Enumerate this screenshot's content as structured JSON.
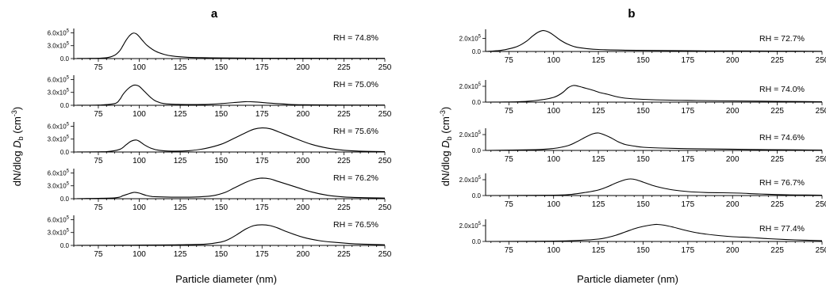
{
  "figure": {
    "panel_letters": [
      "a",
      "b"
    ],
    "x_axis_label": "Particle diameter (nm)",
    "y_axis_label": {
      "main": "dN/dlog ",
      "symbol": "D",
      "subscript": "b",
      "unit_open": "  (cm",
      "unit_exp": "-3",
      "unit_close": ")"
    }
  },
  "chart_data": [
    {
      "panel": "a",
      "row": 1,
      "type": "line",
      "annotation": "RH = 74.8%",
      "x_range": [
        60,
        250
      ],
      "ylim": [
        0,
        700000
      ],
      "xticks": [
        75,
        100,
        125,
        150,
        175,
        200,
        225,
        250
      ],
      "yticks": [
        0,
        300000,
        600000
      ],
      "ytick_labels": [
        "0.0",
        "3.0x10^5",
        "6.0x10^5"
      ],
      "series": [
        {
          "x": [
            62,
            70,
            80,
            85,
            88,
            90,
            92,
            94,
            96,
            98,
            100,
            102,
            105,
            110,
            115,
            120,
            130,
            150,
            175,
            200,
            225,
            250
          ],
          "y": [
            3000,
            5000,
            20000,
            80000,
            180000,
            300000,
            430000,
            530000,
            590000,
            580000,
            510000,
            420000,
            300000,
            170000,
            100000,
            60000,
            30000,
            15000,
            10000,
            8000,
            6000,
            5000
          ]
        }
      ]
    },
    {
      "panel": "a",
      "row": 2,
      "type": "line",
      "annotation": "RH = 75.0%",
      "x_range": [
        60,
        250
      ],
      "ylim": [
        0,
        700000
      ],
      "xticks": [
        75,
        100,
        125,
        150,
        175,
        200,
        225,
        250
      ],
      "yticks": [
        0,
        300000,
        600000
      ],
      "ytick_labels": [
        "0.0",
        "3.0x10^5",
        "6.0x10^5"
      ],
      "series": [
        {
          "x": [
            62,
            75,
            85,
            88,
            90,
            93,
            96,
            98,
            100,
            103,
            107,
            110,
            115,
            125,
            140,
            150,
            160,
            165,
            170,
            180,
            190,
            200,
            225,
            250
          ],
          "y": [
            2000,
            5000,
            40000,
            130000,
            250000,
            380000,
            460000,
            470000,
            440000,
            330000,
            180000,
            100000,
            40000,
            20000,
            20000,
            40000,
            70000,
            85000,
            80000,
            50000,
            25000,
            12000,
            6000,
            5000
          ]
        }
      ]
    },
    {
      "panel": "a",
      "row": 3,
      "type": "line",
      "annotation": "RH = 75.6%",
      "x_range": [
        60,
        250
      ],
      "ylim": [
        0,
        700000
      ],
      "xticks": [
        75,
        100,
        125,
        150,
        175,
        200,
        225,
        250
      ],
      "yticks": [
        0,
        300000,
        600000
      ],
      "ytick_labels": [
        "0.0",
        "3.0x10^5",
        "6.0x10^5"
      ],
      "series": [
        {
          "x": [
            62,
            80,
            88,
            92,
            95,
            98,
            100,
            103,
            107,
            112,
            120,
            130,
            140,
            150,
            158,
            165,
            170,
            175,
            180,
            185,
            195,
            205,
            215,
            225,
            235,
            250
          ],
          "y": [
            2000,
            10000,
            60000,
            170000,
            250000,
            280000,
            250000,
            170000,
            90000,
            40000,
            20000,
            30000,
            80000,
            180000,
            320000,
            450000,
            530000,
            560000,
            540000,
            470000,
            320000,
            180000,
            90000,
            40000,
            20000,
            10000
          ]
        }
      ]
    },
    {
      "panel": "a",
      "row": 4,
      "type": "line",
      "annotation": "RH = 76.2%",
      "x_range": [
        60,
        250
      ],
      "ylim": [
        0,
        700000
      ],
      "xticks": [
        75,
        100,
        125,
        150,
        175,
        200,
        225,
        250
      ],
      "yticks": [
        0,
        300000,
        600000
      ],
      "ytick_labels": [
        "0.0",
        "3.0x10^5",
        "6.0x10^5"
      ],
      "series": [
        {
          "x": [
            62,
            85,
            90,
            94,
            97,
            100,
            104,
            108,
            115,
            125,
            135,
            145,
            152,
            158,
            165,
            170,
            175,
            180,
            185,
            195,
            205,
            215,
            225,
            235,
            250
          ],
          "y": [
            2000,
            20000,
            70000,
            120000,
            150000,
            130000,
            80000,
            50000,
            40000,
            35000,
            40000,
            70000,
            140000,
            250000,
            380000,
            450000,
            480000,
            460000,
            400000,
            280000,
            160000,
            80000,
            40000,
            25000,
            15000
          ]
        }
      ]
    },
    {
      "panel": "a",
      "row": 5,
      "type": "line",
      "annotation": "RH = 76.5%",
      "x_range": [
        60,
        250
      ],
      "ylim": [
        0,
        700000
      ],
      "xticks": [
        75,
        100,
        125,
        150,
        175,
        200,
        225,
        250
      ],
      "yticks": [
        0,
        300000,
        600000
      ],
      "ytick_labels": [
        "0.0",
        "3.0x10^5",
        "6.0x10^5"
      ],
      "series": [
        {
          "x": [
            62,
            90,
            100,
            120,
            140,
            150,
            155,
            160,
            165,
            170,
            175,
            180,
            185,
            190,
            200,
            210,
            220,
            230,
            240,
            250
          ],
          "y": [
            2000,
            5000,
            8000,
            12000,
            30000,
            80000,
            150000,
            260000,
            380000,
            460000,
            480000,
            460000,
            400000,
            320000,
            190000,
            110000,
            70000,
            40000,
            25000,
            15000
          ]
        }
      ]
    },
    {
      "panel": "b",
      "row": 1,
      "type": "line",
      "annotation": "RH = 72.7%",
      "x_range": [
        62,
        250
      ],
      "ylim": [
        0,
        340000
      ],
      "xticks": [
        75,
        100,
        125,
        150,
        175,
        200,
        225,
        250
      ],
      "yticks": [
        0,
        200000
      ],
      "ytick_labels": [
        "0.0",
        "2.0x10^5"
      ],
      "series": [
        {
          "x": [
            62,
            70,
            75,
            80,
            85,
            88,
            91,
            94,
            97,
            100,
            104,
            108,
            112,
            118,
            125,
            140,
            160,
            180,
            200,
            225,
            250
          ],
          "y": [
            0,
            15000,
            40000,
            80000,
            160000,
            230000,
            290000,
            320000,
            300000,
            250000,
            170000,
            110000,
            70000,
            45000,
            30000,
            20000,
            15000,
            10000,
            8000,
            6000,
            3000
          ]
        }
      ]
    },
    {
      "panel": "b",
      "row": 2,
      "type": "line",
      "annotation": "RH = 74.0%",
      "x_range": [
        62,
        250
      ],
      "ylim": [
        0,
        280000
      ],
      "xticks": [
        75,
        100,
        125,
        150,
        175,
        200,
        225,
        250
      ],
      "yticks": [
        0,
        200000
      ],
      "ytick_labels": [
        "0.0",
        "2.0x10^5"
      ],
      "series": [
        {
          "x": [
            62,
            80,
            90,
            100,
            105,
            108,
            111,
            114,
            118,
            122,
            126,
            130,
            135,
            140,
            150,
            165,
            180,
            200,
            225,
            250
          ],
          "y": [
            0,
            5000,
            20000,
            60000,
            120000,
            180000,
            210000,
            200000,
            175000,
            150000,
            120000,
            100000,
            70000,
            50000,
            35000,
            25000,
            20000,
            15000,
            10000,
            5000
          ]
        }
      ]
    },
    {
      "panel": "b",
      "row": 3,
      "type": "line",
      "annotation": "RH = 74.6%",
      "x_range": [
        62,
        250
      ],
      "ylim": [
        0,
        280000
      ],
      "xticks": [
        75,
        100,
        125,
        150,
        175,
        200,
        225,
        250
      ],
      "yticks": [
        0,
        200000
      ],
      "ytick_labels": [
        "0.0",
        "2.0x10^5"
      ],
      "series": [
        {
          "x": [
            62,
            90,
            100,
            108,
            113,
            118,
            122,
            125,
            128,
            132,
            136,
            140,
            145,
            150,
            160,
            175,
            190,
            210,
            230,
            250
          ],
          "y": [
            0,
            10000,
            25000,
            60000,
            110000,
            170000,
            210000,
            220000,
            200000,
            160000,
            110000,
            75000,
            55000,
            40000,
            30000,
            22000,
            18000,
            12000,
            8000,
            4000
          ]
        }
      ]
    },
    {
      "panel": "b",
      "row": 4,
      "type": "line",
      "annotation": "RH = 76.7%",
      "x_range": [
        62,
        250
      ],
      "ylim": [
        0,
        280000
      ],
      "xticks": [
        75,
        100,
        125,
        150,
        175,
        200,
        225,
        250
      ],
      "yticks": [
        0,
        200000
      ],
      "ytick_labels": [
        "0.0",
        "2.0x10^5"
      ],
      "series": [
        {
          "x": [
            62,
            100,
            110,
            118,
            125,
            130,
            135,
            140,
            143,
            146,
            150,
            155,
            160,
            167,
            175,
            185,
            195,
            205,
            215,
            230,
            250
          ],
          "y": [
            0,
            5000,
            15000,
            40000,
            70000,
            110000,
            160000,
            200000,
            210000,
            200000,
            170000,
            130000,
            100000,
            70000,
            50000,
            38000,
            35000,
            30000,
            20000,
            10000,
            5000
          ]
        }
      ]
    },
    {
      "panel": "b",
      "row": 5,
      "type": "line",
      "annotation": "RH = 77.4%",
      "x_range": [
        62,
        250
      ],
      "ylim": [
        0,
        280000
      ],
      "xticks": [
        75,
        100,
        125,
        150,
        175,
        200,
        225,
        250
      ],
      "yticks": [
        0,
        200000
      ],
      "ytick_labels": [
        "0.0",
        "2.0x10^5"
      ],
      "series": [
        {
          "x": [
            62,
            100,
            115,
            125,
            130,
            135,
            140,
            145,
            150,
            155,
            158,
            162,
            167,
            172,
            180,
            190,
            200,
            210,
            220,
            235,
            250
          ],
          "y": [
            0,
            5000,
            15000,
            30000,
            50000,
            80000,
            120000,
            160000,
            190000,
            210000,
            215000,
            205000,
            180000,
            150000,
            110000,
            80000,
            60000,
            50000,
            35000,
            20000,
            10000
          ]
        }
      ]
    }
  ]
}
